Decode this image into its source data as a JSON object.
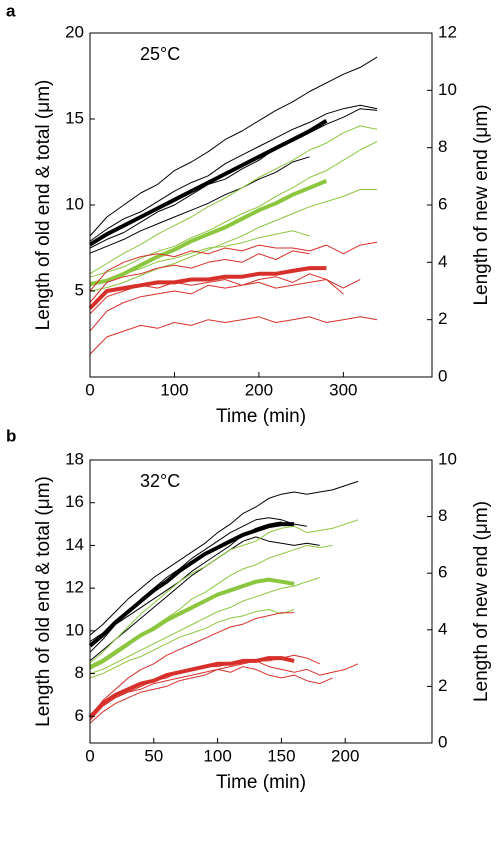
{
  "chart_data": [
    {
      "type": "line",
      "panel": "a",
      "annotation": "25°C",
      "xlabel": "Time (min)",
      "ylabel": "Length of old end & total (μm)",
      "y2label": "Length of new end (μm)",
      "xlim": [
        0,
        405
      ],
      "xticks": [
        0,
        100,
        200,
        300
      ],
      "ylim": [
        0,
        20
      ],
      "yticks": [
        5,
        10,
        15,
        20
      ],
      "y2lim": [
        0,
        12
      ],
      "y2ticks": [
        0,
        2,
        4,
        6,
        8,
        10,
        12
      ],
      "x": [
        0,
        20,
        40,
        60,
        80,
        100,
        120,
        140,
        160,
        180,
        200,
        220,
        240,
        260,
        280,
        300,
        320,
        340,
        360
      ],
      "series": [
        {
          "color": "#000000",
          "linewidth": 1,
          "values": [
            8.2,
            9.3,
            10.0,
            10.7,
            11.2,
            12.0,
            12.5,
            13.1,
            13.8,
            14.3,
            14.9,
            15.5,
            16.0,
            16.6,
            17.1,
            17.6,
            18.0,
            18.6,
            null
          ]
        },
        {
          "color": "#000000",
          "linewidth": 1,
          "values": [
            7.5,
            8.0,
            8.4,
            9.0,
            9.6,
            10.0,
            10.6,
            11.2,
            11.5,
            12.1,
            12.6,
            13.3,
            13.7,
            14.2,
            14.7,
            15.1,
            15.6,
            15.5,
            null
          ]
        },
        {
          "color": "#000000",
          "linewidth": 1,
          "values": [
            7.2,
            7.6,
            8.0,
            8.5,
            8.9,
            9.3,
            9.7,
            10.1,
            10.6,
            11.0,
            11.5,
            11.9,
            12.5,
            12.8,
            null,
            null,
            null,
            null,
            null
          ]
        },
        {
          "color": "#000000",
          "linewidth": 1,
          "values": [
            7.9,
            8.6,
            9.2,
            9.6,
            10.2,
            10.8,
            11.3,
            11.7,
            12.4,
            12.9,
            13.4,
            13.9,
            14.4,
            14.8,
            15.3,
            15.6,
            15.8,
            15.6,
            null
          ]
        },
        {
          "color": "#000000",
          "linewidth": 4,
          "values": [
            7.7,
            8.3,
            8.8,
            9.3,
            9.8,
            10.3,
            10.8,
            11.3,
            11.8,
            12.3,
            12.8,
            13.3,
            13.8,
            14.3,
            14.9,
            null,
            null,
            null,
            null
          ]
        },
        {
          "color": "#8cc63f",
          "linewidth": 1,
          "values": [
            6.0,
            6.6,
            7.2,
            7.7,
            8.3,
            8.8,
            9.3,
            9.9,
            10.4,
            11.0,
            11.6,
            12.1,
            12.6,
            13.2,
            13.6,
            14.2,
            14.6,
            14.4,
            null
          ]
        },
        {
          "color": "#8cc63f",
          "linewidth": 1,
          "values": [
            5.8,
            6.1,
            6.4,
            6.9,
            7.3,
            7.6,
            8.1,
            8.5,
            9.0,
            9.5,
            9.9,
            10.5,
            11.0,
            11.6,
            12.0,
            12.6,
            13.2,
            13.7,
            null
          ]
        },
        {
          "color": "#8cc63f",
          "linewidth": 1,
          "values": [
            5.0,
            5.2,
            5.5,
            5.9,
            6.3,
            6.6,
            7.0,
            7.4,
            7.8,
            8.2,
            8.7,
            9.1,
            9.5,
            9.9,
            10.2,
            10.5,
            10.9,
            10.9,
            null
          ]
        },
        {
          "color": "#8cc63f",
          "linewidth": 1,
          "values": [
            5.3,
            5.6,
            6.0,
            6.3,
            6.7,
            6.9,
            7.2,
            7.5,
            7.6,
            7.8,
            8.1,
            8.3,
            8.5,
            8.2,
            null,
            null,
            null,
            null,
            null
          ]
        },
        {
          "color": "#8cc63f",
          "linewidth": 4,
          "values": [
            5.4,
            5.6,
            6.0,
            6.5,
            7.0,
            7.4,
            7.9,
            8.3,
            8.7,
            9.2,
            9.7,
            10.1,
            10.6,
            11.0,
            11.4,
            null,
            null,
            null,
            null
          ]
        },
        {
          "color": "#d7302a",
          "linewidth": 1,
          "axis": "y2",
          "values": [
            3.0,
            3.7,
            4.0,
            4.2,
            4.3,
            4.2,
            4.4,
            4.3,
            4.5,
            4.4,
            4.6,
            4.5,
            4.5,
            4.4,
            4.6,
            4.3,
            4.6,
            4.7,
            null
          ]
        },
        {
          "color": "#d7302a",
          "linewidth": 1,
          "axis": "y2",
          "values": [
            2.6,
            3.3,
            3.5,
            3.6,
            3.8,
            3.9,
            3.8,
            4.0,
            4.1,
            4.0,
            4.3,
            4.1,
            4.4,
            4.3,
            null,
            null,
            null,
            null,
            null
          ]
        },
        {
          "color": "#d7302a",
          "linewidth": 1,
          "axis": "y2",
          "values": [
            1.6,
            2.3,
            2.6,
            2.8,
            2.9,
            3.0,
            2.9,
            3.2,
            3.1,
            3.2,
            3.3,
            3.1,
            3.2,
            3.3,
            3.4,
            3.1,
            3.4,
            null,
            null
          ]
        },
        {
          "color": "#d7302a",
          "linewidth": 1,
          "axis": "y2",
          "values": [
            0.8,
            1.4,
            1.6,
            1.8,
            1.7,
            1.9,
            1.8,
            2.0,
            1.9,
            2.0,
            2.1,
            1.9,
            2.0,
            2.1,
            1.9,
            2.0,
            2.1,
            2.0,
            null
          ]
        },
        {
          "color": "#d7302a",
          "linewidth": 1,
          "axis": "y2",
          "values": [
            2.2,
            2.8,
            3.0,
            3.2,
            3.1,
            3.3,
            3.2,
            3.3,
            3.4,
            3.2,
            3.4,
            3.5,
            3.3,
            3.6,
            3.4,
            2.9,
            null,
            null,
            null
          ]
        },
        {
          "color": "#d7302a",
          "linewidth": 4,
          "axis": "y2",
          "values": [
            2.4,
            3.0,
            3.1,
            3.2,
            3.3,
            3.3,
            3.4,
            3.4,
            3.5,
            3.5,
            3.6,
            3.6,
            3.7,
            3.8,
            3.8,
            null,
            null,
            null,
            null
          ]
        }
      ]
    },
    {
      "type": "line",
      "panel": "b",
      "annotation": "32°C",
      "xlabel": "Time (min)",
      "ylabel": "Length of old end & total (μm)",
      "y2label": "Length of new end (μm)",
      "xlim": [
        0,
        268
      ],
      "xticks": [
        0,
        50,
        100,
        150,
        200
      ],
      "ylim": [
        4.75,
        18
      ],
      "yticks": [
        6,
        8,
        10,
        12,
        14,
        16,
        18
      ],
      "y2lim": [
        0,
        10
      ],
      "y2ticks": [
        0,
        2,
        4,
        6,
        8,
        10
      ],
      "x": [
        0,
        10,
        20,
        30,
        40,
        50,
        60,
        70,
        80,
        90,
        100,
        110,
        120,
        130,
        140,
        150,
        160,
        170,
        180,
        190,
        200,
        210
      ],
      "series": [
        {
          "color": "#000000",
          "linewidth": 1,
          "values": [
            9.8,
            10.3,
            10.9,
            11.5,
            12.0,
            12.5,
            12.9,
            13.3,
            13.7,
            14.1,
            14.6,
            15.0,
            15.5,
            15.8,
            16.2,
            16.4,
            16.5,
            16.4,
            16.5,
            16.6,
            16.8,
            17.0
          ]
        },
        {
          "color": "#000000",
          "linewidth": 1,
          "values": [
            9.0,
            9.6,
            10.3,
            10.9,
            11.5,
            12.0,
            12.5,
            12.9,
            13.4,
            13.8,
            14.2,
            14.6,
            14.9,
            15.2,
            15.3,
            15.2,
            15.0,
            14.9,
            null,
            null,
            null,
            null
          ]
        },
        {
          "color": "#000000",
          "linewidth": 1,
          "values": [
            8.6,
            9.1,
            9.6,
            10.1,
            10.6,
            11.1,
            11.6,
            12.1,
            12.6,
            13.0,
            13.4,
            13.8,
            14.2,
            14.4,
            14.2,
            14.1,
            14.0,
            14.1,
            14.0,
            null,
            null,
            null
          ]
        },
        {
          "color": "#000000",
          "linewidth": 1,
          "values": [
            9.5,
            9.9,
            10.3,
            10.7,
            11.1,
            11.5,
            11.9,
            12.3,
            12.8,
            13.2,
            13.6,
            14.0,
            14.5,
            14.8,
            15.0,
            15.1,
            null,
            null,
            null,
            null,
            null,
            null
          ]
        },
        {
          "color": "#000000",
          "linewidth": 4,
          "values": [
            9.3,
            9.8,
            10.4,
            10.9,
            11.4,
            11.9,
            12.3,
            12.8,
            13.2,
            13.6,
            13.9,
            14.2,
            14.5,
            14.7,
            14.9,
            15.0,
            15.0,
            null,
            null,
            null,
            null,
            null
          ]
        },
        {
          "color": "#8cc63f",
          "linewidth": 1,
          "values": [
            8.5,
            9.0,
            9.6,
            10.2,
            10.8,
            11.3,
            11.8,
            12.3,
            12.7,
            13.0,
            13.4,
            13.8,
            14.0,
            14.2,
            14.6,
            14.8,
            14.9,
            14.6,
            14.7,
            14.8,
            15.0,
            15.2
          ]
        },
        {
          "color": "#8cc63f",
          "linewidth": 1,
          "values": [
            8.2,
            8.5,
            8.9,
            9.3,
            9.8,
            10.2,
            10.6,
            11.0,
            11.5,
            11.8,
            12.2,
            12.6,
            12.9,
            13.1,
            13.4,
            13.6,
            13.8,
            14.0,
            13.9,
            14.0,
            null,
            null
          ]
        },
        {
          "color": "#8cc63f",
          "linewidth": 1,
          "values": [
            8.0,
            8.2,
            8.5,
            8.8,
            9.1,
            9.4,
            9.7,
            10.0,
            10.3,
            10.6,
            10.9,
            11.1,
            11.4,
            11.6,
            11.8,
            12.0,
            12.1,
            12.3,
            12.5,
            null,
            null,
            null
          ]
        },
        {
          "color": "#8cc63f",
          "linewidth": 1,
          "values": [
            7.8,
            8.0,
            8.3,
            8.6,
            8.8,
            9.1,
            9.4,
            9.7,
            9.9,
            10.1,
            10.4,
            10.6,
            10.7,
            10.9,
            11.0,
            10.8,
            11.0,
            null,
            null,
            null,
            null,
            null
          ]
        },
        {
          "color": "#8cc63f",
          "linewidth": 4,
          "values": [
            8.3,
            8.6,
            9.0,
            9.4,
            9.8,
            10.1,
            10.5,
            10.8,
            11.1,
            11.4,
            11.7,
            11.9,
            12.1,
            12.3,
            12.4,
            12.3,
            12.2,
            null,
            null,
            null,
            null,
            null
          ]
        },
        {
          "color": "#d7302a",
          "linewidth": 1,
          "axis": "y2",
          "values": [
            0.9,
            1.5,
            1.9,
            2.3,
            2.6,
            2.8,
            3.1,
            3.3,
            3.5,
            3.7,
            3.9,
            4.1,
            4.2,
            4.4,
            4.5,
            4.6,
            4.6,
            null,
            null,
            null,
            null,
            null
          ]
        },
        {
          "color": "#d7302a",
          "linewidth": 1,
          "axis": "y2",
          "values": [
            0.8,
            1.3,
            1.6,
            1.8,
            2.0,
            2.2,
            2.3,
            2.5,
            2.6,
            2.7,
            2.7,
            2.8,
            2.8,
            2.9,
            2.7,
            2.6,
            2.5,
            2.6,
            2.4,
            2.5,
            2.6,
            2.8
          ]
        },
        {
          "color": "#d7302a",
          "linewidth": 1,
          "axis": "y2",
          "values": [
            1.0,
            1.4,
            1.6,
            1.8,
            1.9,
            2.1,
            2.2,
            2.3,
            2.4,
            2.5,
            2.6,
            2.5,
            2.7,
            2.6,
            2.4,
            2.3,
            2.4,
            2.2,
            2.1,
            2.3,
            null,
            null
          ]
        },
        {
          "color": "#d7302a",
          "linewidth": 1,
          "axis": "y2",
          "values": [
            0.7,
            1.1,
            1.4,
            1.6,
            1.8,
            1.9,
            2.0,
            2.2,
            2.3,
            2.4,
            2.6,
            2.7,
            2.8,
            2.9,
            2.9,
            3.0,
            3.1,
            3.0,
            2.8,
            null,
            null,
            null
          ]
        },
        {
          "color": "#d7302a",
          "linewidth": 4,
          "axis": "y2",
          "values": [
            0.9,
            1.4,
            1.7,
            1.9,
            2.1,
            2.2,
            2.4,
            2.5,
            2.6,
            2.7,
            2.8,
            2.8,
            2.9,
            2.9,
            3.0,
            3.0,
            2.9,
            null,
            null,
            null,
            null,
            null
          ]
        }
      ]
    }
  ]
}
